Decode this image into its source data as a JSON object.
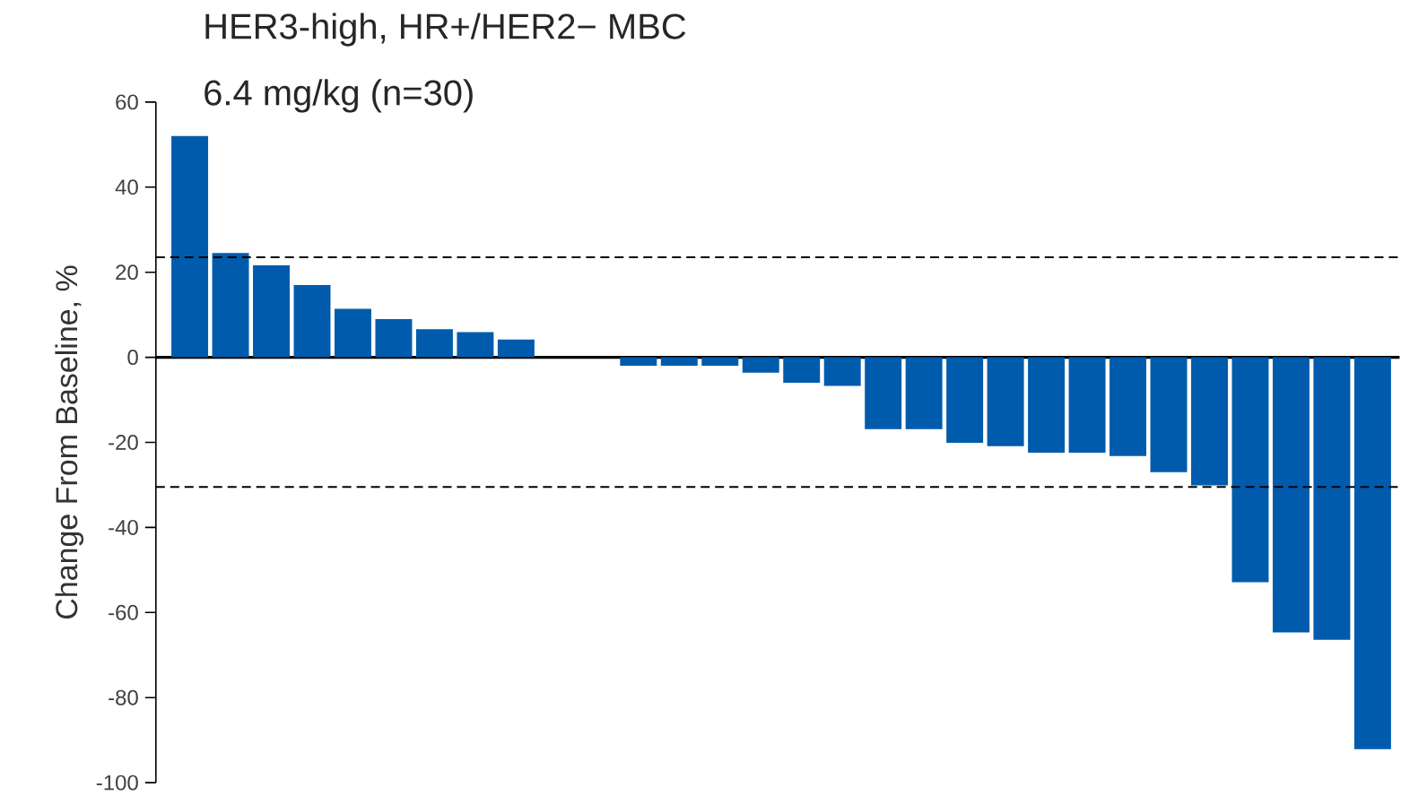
{
  "chart_data": {
    "type": "bar",
    "title": "HER3-high, HR+/HER2− MBC",
    "subtitle": "6.4 mg/kg (n=30)",
    "ylabel": "Change From Baseline, %",
    "categories": [
      null,
      null,
      null,
      null,
      null,
      null,
      null,
      null,
      null,
      null,
      null,
      null,
      null,
      null,
      null,
      null,
      null,
      null,
      null,
      null,
      null,
      null,
      null,
      null,
      null,
      null,
      null,
      null,
      null,
      null
    ],
    "values": [
      52,
      24.5,
      21.6,
      17,
      11.4,
      9,
      6.6,
      5.9,
      4.2,
      0,
      0,
      -2,
      -2,
      -2,
      -3.6,
      -6,
      -6.7,
      -16.9,
      -16.9,
      -20.1,
      -20.9,
      -22.4,
      -22.4,
      -23.2,
      -27,
      -30.1,
      -52.9,
      -64.7,
      -66.4,
      -92.1
    ],
    "color": "#005bac",
    "ylim": [
      -100,
      60
    ],
    "yticks": [
      -100,
      -80,
      -60,
      -40,
      -20,
      0,
      20,
      40,
      60
    ],
    "tick_labels": "y",
    "ref_lines": [
      {
        "axis": "y",
        "value": 23.5,
        "line_style": "dashed",
        "color": "#000000"
      },
      {
        "axis": "y",
        "value": -30.5,
        "line_style": "dashed",
        "color": "#000000"
      }
    ]
  }
}
